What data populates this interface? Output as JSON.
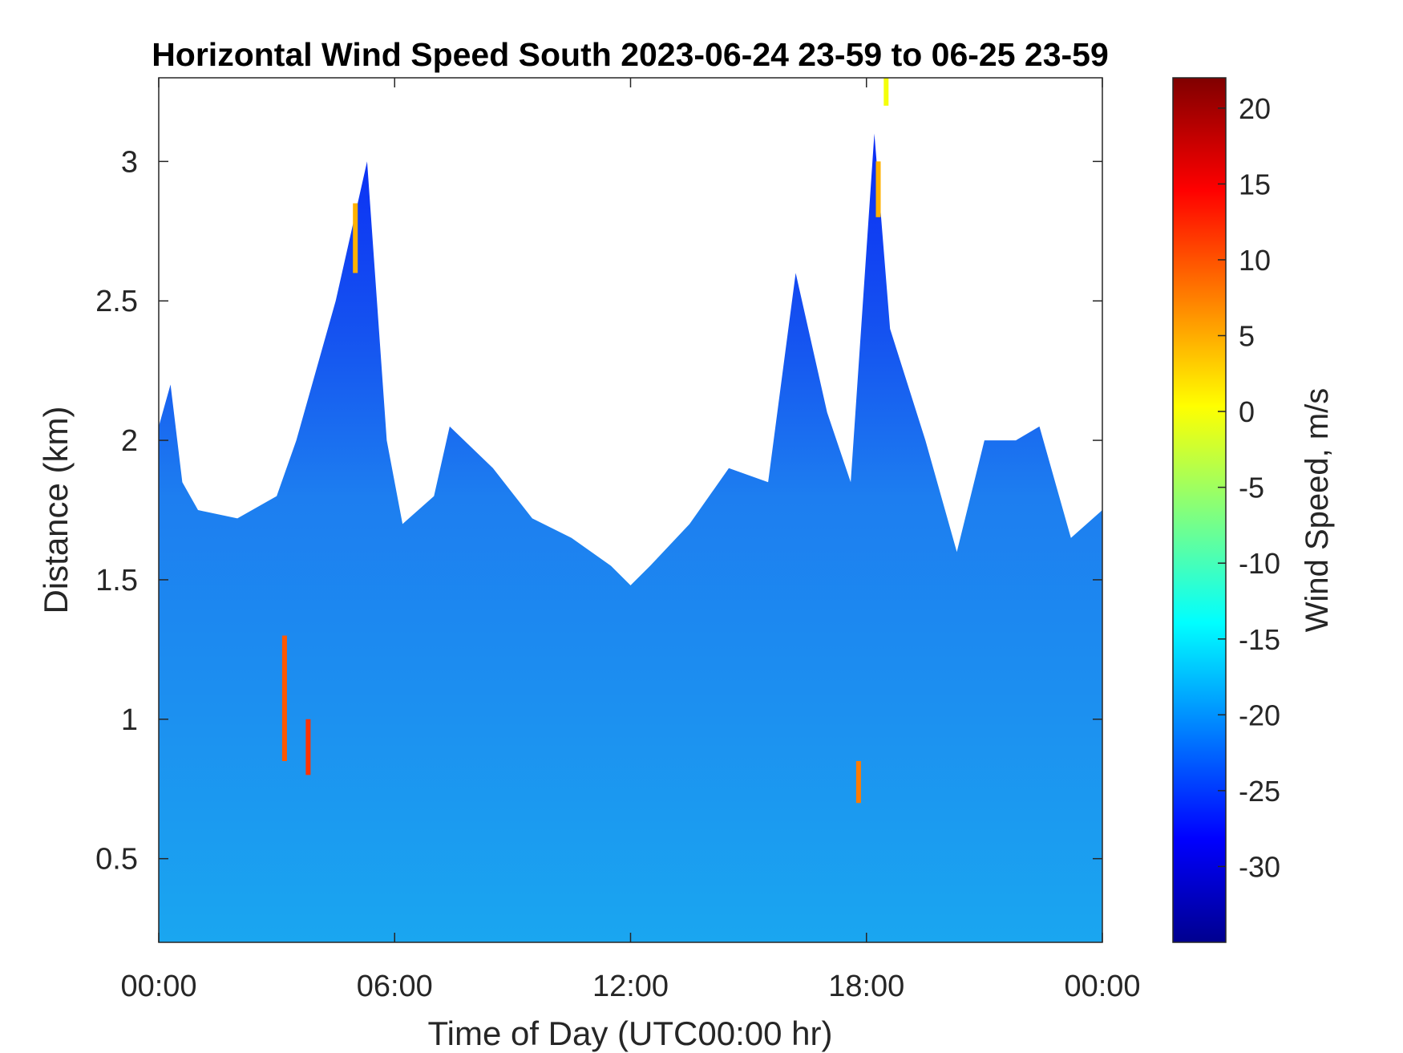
{
  "chart_data": {
    "type": "heatmap",
    "title": "Horizontal Wind Speed South 2023-06-24 23-59 to 06-25 23-59",
    "xlabel": "Time of Day (UTC00:00 hr)",
    "ylabel": "Distance (km)",
    "colorbar_label": "Wind Speed, m/s",
    "x_ticks": [
      "00:00",
      "06:00",
      "12:00",
      "18:00",
      "00:00"
    ],
    "x_tick_hours": [
      0,
      6,
      12,
      18,
      24
    ],
    "xlim_hours": [
      0,
      24
    ],
    "y_ticks": [
      "0.5",
      "1",
      "1.5",
      "2",
      "2.5",
      "3"
    ],
    "y_tick_values": [
      0.5,
      1,
      1.5,
      2,
      2.5,
      3
    ],
    "ylim": [
      0.2,
      3.3
    ],
    "colorbar_ticks": [
      "20",
      "15",
      "10",
      "5",
      "0",
      "-5",
      "-10",
      "-15",
      "-20",
      "-25",
      "-30"
    ],
    "colorbar_tick_values": [
      20,
      15,
      10,
      5,
      0,
      -5,
      -10,
      -15,
      -20,
      -25,
      -30
    ],
    "clim": [
      -35,
      22
    ],
    "colormap": "jet",
    "grid": false,
    "data_top_km": [
      {
        "t": 0.0,
        "top": 2.05
      },
      {
        "t": 0.3,
        "top": 2.2
      },
      {
        "t": 0.6,
        "top": 1.85
      },
      {
        "t": 1.0,
        "top": 1.75
      },
      {
        "t": 2.0,
        "top": 1.72
      },
      {
        "t": 3.0,
        "top": 1.8
      },
      {
        "t": 3.5,
        "top": 2.0
      },
      {
        "t": 4.5,
        "top": 2.5
      },
      {
        "t": 5.3,
        "top": 3.0
      },
      {
        "t": 5.8,
        "top": 2.0
      },
      {
        "t": 6.2,
        "top": 1.7
      },
      {
        "t": 7.0,
        "top": 1.8
      },
      {
        "t": 7.4,
        "top": 2.05
      },
      {
        "t": 8.5,
        "top": 1.9
      },
      {
        "t": 9.5,
        "top": 1.72
      },
      {
        "t": 10.5,
        "top": 1.65
      },
      {
        "t": 11.5,
        "top": 1.55
      },
      {
        "t": 12.0,
        "top": 1.48
      },
      {
        "t": 12.5,
        "top": 1.55
      },
      {
        "t": 13.5,
        "top": 1.7
      },
      {
        "t": 14.5,
        "top": 1.9
      },
      {
        "t": 15.5,
        "top": 1.85
      },
      {
        "t": 16.2,
        "top": 2.6
      },
      {
        "t": 17.0,
        "top": 2.1
      },
      {
        "t": 17.6,
        "top": 1.85
      },
      {
        "t": 18.2,
        "top": 3.1
      },
      {
        "t": 18.6,
        "top": 2.4
      },
      {
        "t": 19.5,
        "top": 2.0
      },
      {
        "t": 20.3,
        "top": 1.6
      },
      {
        "t": 21.0,
        "top": 2.0
      },
      {
        "t": 21.8,
        "top": 2.0
      },
      {
        "t": 22.4,
        "top": 2.05
      },
      {
        "t": 23.2,
        "top": 1.65
      },
      {
        "t": 24.0,
        "top": 1.75
      }
    ],
    "high_speed_streaks": [
      {
        "t": 3.2,
        "from_km": 0.85,
        "to_km": 1.3,
        "value": 10
      },
      {
        "t": 3.8,
        "from_km": 0.8,
        "to_km": 1.0,
        "value": 12
      },
      {
        "t": 5.0,
        "from_km": 2.6,
        "to_km": 2.85,
        "value": 5
      },
      {
        "t": 17.8,
        "from_km": 0.7,
        "to_km": 0.85,
        "value": 8
      },
      {
        "t": 18.3,
        "from_km": 2.8,
        "to_km": 3.0,
        "value": 5
      },
      {
        "t": 18.5,
        "from_km": 3.2,
        "to_km": 3.3,
        "value": 0
      }
    ]
  }
}
